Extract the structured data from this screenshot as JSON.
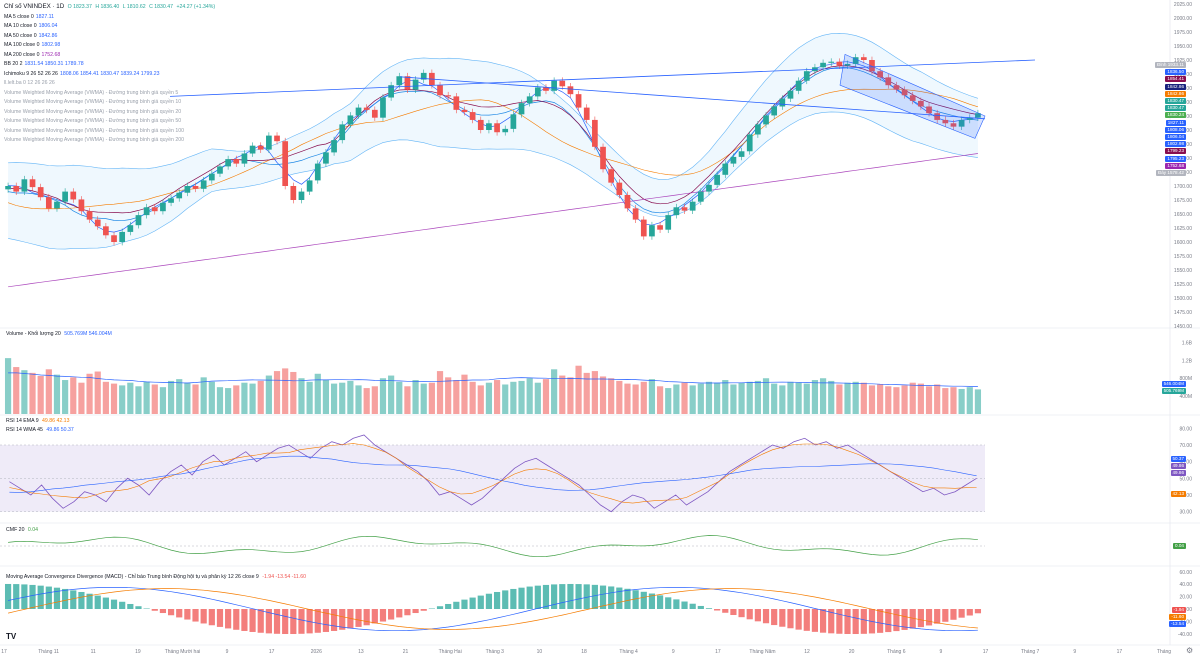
{
  "header": {
    "symbol": "Chỉ số VNINDEX · 1D",
    "open": "O 1823.37",
    "high": "H 1836.40",
    "low": "L 1810.62",
    "close": "C 1830.47",
    "change": "+24.27 (+1.34%)"
  },
  "indicators": [
    {
      "label": "MA 5 close 0",
      "value": "1827.11",
      "color": "#2962ff"
    },
    {
      "label": "MA 10 close 0",
      "value": "1806.04",
      "color": "#2962ff"
    },
    {
      "label": "MA 50 close 0",
      "value": "1842.86",
      "color": "#2962ff"
    },
    {
      "label": "MA 100 close 0",
      "value": "1802.98",
      "color": "#2962ff"
    },
    {
      "label": "MA 200 close 0",
      "value": "1752.68",
      "color": "#9c27b0"
    },
    {
      "label": "BB 20 2",
      "value": "1831.54  1850.31  1789.78",
      "color": "#2962ff"
    },
    {
      "label": "Ichimoku 9 26 52 26 26",
      "value": "1808.06  1854.41  1830.47  1839.24  1799.23",
      "color": "#2962ff"
    },
    {
      "label": "ll.lelt.ba 0 12 26 26 26",
      "value": "",
      "color": "#9aa0ab"
    }
  ],
  "vwma": [
    "Volume Weighted Moving Average (VWMA) - Đường trung bình giá quyền 5",
    "Volume Weighted Moving Average (VWMA) - Đường trung bình giá quyền 10",
    "Volume Weighted Moving Average (VWMA) - Đường trung bình giá quyền 20",
    "Volume Weighted Moving Average (VWMA) - Đường trung bình giá quyền 50",
    "Volume Weighted Moving Average (VWMA) - Đường trung bình giá quyền 100",
    "Volume Weighted Moving Average (VWMA) - Đường trung bình giá quyền 200"
  ],
  "panels": {
    "volume": {
      "label": "Volume - Khối lượng 20",
      "values": "505.769M  546.004M"
    },
    "rsi1": {
      "label": "RSI 14 EMA 9",
      "values": "49.86  42.13"
    },
    "rsi2": {
      "label": "RSI 14 WMA 45",
      "values": "49.86  50.37"
    },
    "cmf": {
      "label": "CMF 20",
      "values": "0.04"
    },
    "macd": {
      "label": "Moving Average Convergence Divergence (MACD) - Chỉ báo Trung bình Động hội tụ và phân kỳ 12 26 close 9",
      "values": "-1.94  -13.54  -11.60"
    }
  },
  "price_axis": [
    "2025.00",
    "2000.00",
    "1975.00",
    "1950.00",
    "1925.00",
    "1900.00",
    "1875.00",
    "1850.00",
    "1825.00",
    "1800.00",
    "1775.00",
    "1750.00",
    "1725.00",
    "1700.00",
    "1675.00",
    "1650.00",
    "1625.00",
    "1600.00",
    "1575.00",
    "1550.00",
    "1525.00",
    "1500.00",
    "1475.00",
    "1450.00"
  ],
  "volume_axis": [
    "1.6B",
    "1.2B",
    "800M",
    "400M"
  ],
  "rsi_axis": [
    "80.00",
    "70.00",
    "60.00",
    "50.00",
    "40.00",
    "30.00"
  ],
  "macd_axis": [
    "60.00",
    "40.00",
    "20.00",
    "0.00",
    "-20.00",
    "-40.00"
  ],
  "price_tags": [
    {
      "text": "Đỉnh  1933.11",
      "color": "#b2b5be"
    },
    {
      "text": "1836.50",
      "color": "#2962ff"
    },
    {
      "text": "1854.41",
      "color": "#880e4f"
    },
    {
      "text": "1842.86",
      "color": "#1a237e"
    },
    {
      "text": "1842.86",
      "color": "#f57c00"
    },
    {
      "text": "1830.47",
      "color": "#26a69a"
    },
    {
      "text": "1830.47",
      "color": "#26a69a"
    },
    {
      "text": "1830.24",
      "color": "#4caf50"
    },
    {
      "text": "1827.11",
      "color": "#2962ff"
    },
    {
      "text": "1808.06",
      "color": "#2962ff"
    },
    {
      "text": "1806.04",
      "color": "#2962ff"
    },
    {
      "text": "1802.98",
      "color": "#2962ff"
    },
    {
      "text": "1799.23",
      "color": "#880e4f"
    },
    {
      "text": "1795.23",
      "color": "#2962ff"
    },
    {
      "text": "1752.68",
      "color": "#9c27b0"
    },
    {
      "text": "Đáy  1578.42",
      "color": "#b2b5be"
    }
  ],
  "other_tags": {
    "volume": [
      {
        "text": "546.004M",
        "color": "#2962ff"
      },
      {
        "text": "505.769M",
        "color": "#26a69a"
      }
    ],
    "rsi": [
      {
        "text": "50.37",
        "color": "#2962ff"
      },
      {
        "text": "49.86",
        "color": "#7e57c2"
      },
      {
        "text": "49.86",
        "color": "#7e57c2"
      },
      {
        "text": "42.13",
        "color": "#f57c00"
      }
    ],
    "cmf": [
      {
        "text": "0.04",
        "color": "#43a047"
      }
    ],
    "macd": [
      {
        "text": "-1.94",
        "color": "#ef5350"
      },
      {
        "text": "-11.60",
        "color": "#f57c00"
      },
      {
        "text": "-13.54",
        "color": "#2962ff"
      }
    ]
  },
  "time_axis": [
    "17",
    "Tháng 11",
    "11",
    "19",
    "Tháng Mười hai",
    "9",
    "17",
    "2026",
    "13",
    "21",
    "Tháng Hai",
    "Tháng 3",
    "10",
    "18",
    "Tháng 4",
    "9",
    "17",
    "Tháng Năm",
    "12",
    "20",
    "Tháng 6",
    "9",
    "17",
    "Tháng 7",
    "9",
    "17",
    "Tháng"
  ],
  "colors": {
    "up": "#26a69a",
    "down": "#ef5350",
    "bg": "#ffffff",
    "grid": "#f0f3fa",
    "rsi_band": "#7e57c2"
  },
  "chart_data": {
    "type": "candlestick",
    "title": "Chỉ số VNINDEX · 1D",
    "ylim": [
      1450,
      2025
    ],
    "closes": [
      1700,
      1690,
      1712,
      1698,
      1680,
      1660,
      1672,
      1690,
      1676,
      1655,
      1640,
      1628,
      1612,
      1600,
      1618,
      1630,
      1648,
      1662,
      1655,
      1670,
      1678,
      1688,
      1700,
      1695,
      1710,
      1722,
      1735,
      1748,
      1740,
      1758,
      1772,
      1765,
      1790,
      1780,
      1700,
      1675,
      1690,
      1710,
      1740,
      1760,
      1782,
      1810,
      1826,
      1840,
      1836,
      1822,
      1858,
      1880,
      1896,
      1872,
      1890,
      1902,
      1880,
      1862,
      1860,
      1836,
      1832,
      1818,
      1800,
      1812,
      1796,
      1802,
      1828,
      1848,
      1860,
      1876,
      1870,
      1888,
      1878,
      1864,
      1840,
      1818,
      1770,
      1730,
      1706,
      1684,
      1660,
      1640,
      1610,
      1630,
      1622,
      1648,
      1662,
      1656,
      1672,
      1690,
      1702,
      1720,
      1740,
      1752,
      1762,
      1792,
      1810,
      1826,
      1842,
      1856,
      1870,
      1888,
      1905,
      1912,
      1920,
      1922,
      1915,
      1918,
      1930,
      1925,
      1905,
      1894,
      1880,
      1872,
      1862,
      1852,
      1842,
      1830,
      1818,
      1812,
      1806,
      1818,
      1822,
      1830
    ],
    "volumes": [
      1.25,
      1.05,
      0.98,
      0.92,
      0.85,
      1.0,
      0.88,
      0.76,
      0.82,
      0.7,
      0.9,
      0.95,
      0.72,
      0.68,
      0.64,
      0.7,
      0.62,
      0.72,
      0.66,
      0.6,
      0.74,
      0.78,
      0.7,
      0.66,
      0.82,
      0.72,
      0.6,
      0.58,
      0.64,
      0.7,
      0.68,
      0.74,
      0.86,
      0.96,
      1.02,
      0.94,
      0.8,
      0.72,
      0.9,
      0.76,
      0.68,
      0.7,
      0.74,
      0.64,
      0.58,
      0.62,
      0.8,
      0.86,
      0.72,
      0.62,
      0.76,
      0.68,
      0.7,
      0.96,
      0.82,
      0.76,
      0.88,
      0.72,
      0.64,
      0.7,
      0.76,
      0.66,
      0.72,
      0.74,
      0.8,
      0.7,
      0.78,
      1.0,
      0.86,
      0.82,
      1.08,
      0.92,
      0.96,
      0.84,
      0.8,
      0.74,
      0.68,
      0.66,
      0.72,
      0.78,
      0.62,
      0.58,
      0.66,
      0.7,
      0.64,
      0.68,
      0.72,
      0.7,
      0.76,
      0.66,
      0.7,
      0.72,
      0.74,
      0.8,
      0.68,
      0.64,
      0.72,
      0.7,
      0.68,
      0.76,
      0.8,
      0.74,
      0.66,
      0.7,
      0.72,
      0.7,
      0.64,
      0.66,
      0.62,
      0.6,
      0.64,
      0.7,
      0.68,
      0.62,
      0.66,
      0.58,
      0.6,
      0.56,
      0.6,
      0.55
    ],
    "rsi": [
      48,
      44,
      40,
      46,
      38,
      32,
      36,
      42,
      40,
      36,
      44,
      50,
      46,
      40,
      48,
      54,
      58,
      52,
      60,
      64,
      58,
      62,
      66,
      60,
      64,
      68,
      70,
      66,
      62,
      68,
      72,
      70,
      74,
      76,
      70,
      66,
      62,
      58,
      54,
      48,
      40,
      42,
      38,
      34,
      38,
      44,
      50,
      56,
      60,
      62,
      58,
      54,
      50,
      46,
      40,
      34,
      30,
      36,
      40,
      38,
      32,
      36,
      40,
      34,
      38,
      42,
      48,
      54,
      58,
      62,
      66,
      70,
      68,
      72,
      74,
      70,
      72,
      68,
      70,
      66,
      62,
      58,
      54,
      50,
      46,
      42,
      44,
      40,
      42,
      46,
      50
    ]
  }
}
